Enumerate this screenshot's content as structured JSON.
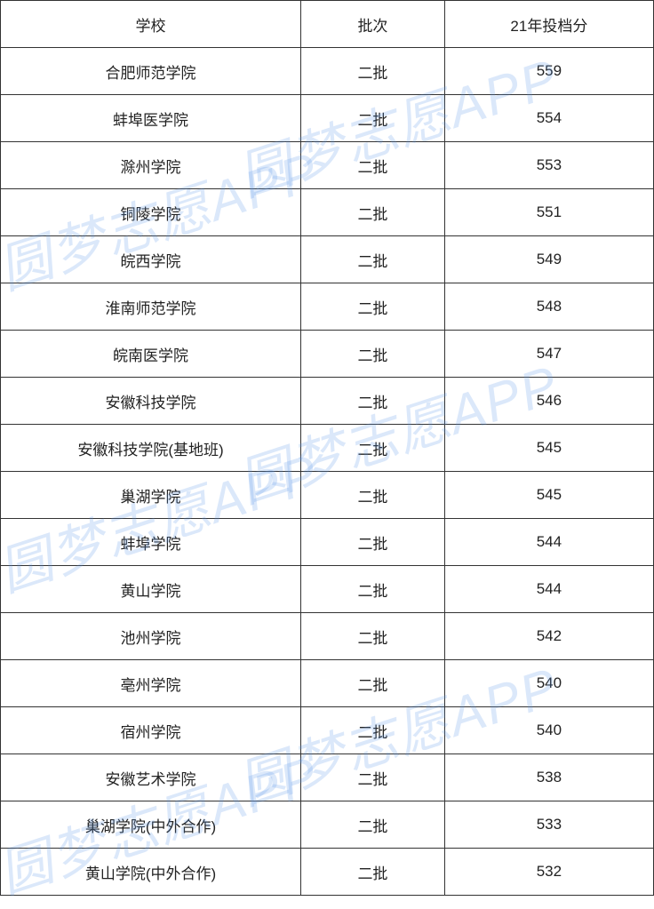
{
  "table": {
    "columns": [
      "学校",
      "批次",
      "21年投档分"
    ],
    "rows": [
      [
        "合肥师范学院",
        "二批",
        "559"
      ],
      [
        "蚌埠医学院",
        "二批",
        "554"
      ],
      [
        "滁州学院",
        "二批",
        "553"
      ],
      [
        "铜陵学院",
        "二批",
        "551"
      ],
      [
        "皖西学院",
        "二批",
        "549"
      ],
      [
        "淮南师范学院",
        "二批",
        "548"
      ],
      [
        "皖南医学院",
        "二批",
        "547"
      ],
      [
        "安徽科技学院",
        "二批",
        "546"
      ],
      [
        "安徽科技学院(基地班)",
        "二批",
        "545"
      ],
      [
        "巢湖学院",
        "二批",
        "545"
      ],
      [
        "蚌埠学院",
        "二批",
        "544"
      ],
      [
        "黄山学院",
        "二批",
        "544"
      ],
      [
        "池州学院",
        "二批",
        "542"
      ],
      [
        "亳州学院",
        "二批",
        "540"
      ],
      [
        "宿州学院",
        "二批",
        "540"
      ],
      [
        "安徽艺术学院",
        "二批",
        "538"
      ],
      [
        "巢湖学院(中外合作)",
        "二批",
        "533"
      ],
      [
        "黄山学院(中外合作)",
        "二批",
        "532"
      ]
    ],
    "border_color": "#333333",
    "text_color": "#222222",
    "font_size": 17,
    "background_color": "#ffffff"
  },
  "watermark": {
    "text": "圆梦志愿APP",
    "color": "rgba(90,150,230,0.22)",
    "font_size": 60,
    "rotation_deg": -18
  }
}
